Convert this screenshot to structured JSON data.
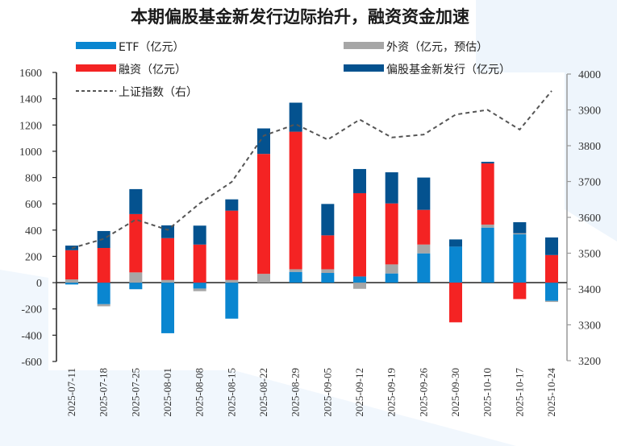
{
  "chart_data": {
    "type": "bar",
    "subtype": "stacked-bar-with-line",
    "title": "本期偏股基金新发行边际抬升，融资资金加速",
    "categories": [
      "2025-07-11",
      "2025-07-18",
      "2025-07-25",
      "2025-08-01",
      "2025-08-08",
      "2025-08-15",
      "2025-08-22",
      "2025-08-29",
      "2025-09-05",
      "2025-09-12",
      "2025-09-19",
      "2025-09-26",
      "2025-09-30",
      "2025-10-10",
      "2025-10-17",
      "2025-10-24"
    ],
    "series": [
      {
        "name": "ETF（亿元）",
        "type": "bar",
        "axis": "left",
        "color": "#0a86d0",
        "values": [
          -14,
          -164,
          -50,
          -385,
          -45,
          -274,
          0,
          82,
          74,
          47,
          70,
          223,
          274,
          419,
          368,
          -139
        ]
      },
      {
        "name": "外资（亿元，预估）",
        "type": "bar",
        "axis": "left",
        "color": "#a6a6a6",
        "values": [
          25,
          -16,
          78,
          20,
          -20,
          20,
          67,
          20,
          28,
          -47,
          69,
          67,
          0,
          23,
          8,
          -8
        ]
      },
      {
        "name": "融资（亿元）",
        "type": "bar",
        "axis": "left",
        "color": "#f42323",
        "values": [
          222,
          264,
          444,
          319,
          290,
          528,
          913,
          1047,
          258,
          634,
          464,
          264,
          -302,
          466,
          -125,
          210
        ]
      },
      {
        "name": "偏股基金新发行（亿元）",
        "type": "bar",
        "axis": "left",
        "color": "#04528f",
        "values": [
          35,
          129,
          190,
          97,
          144,
          86,
          194,
          221,
          239,
          184,
          237,
          246,
          55,
          12,
          84,
          134
        ]
      },
      {
        "name": "上证指数（右）",
        "type": "line",
        "axis": "right",
        "color": "#555555",
        "dashed": true,
        "values": [
          3514,
          3540,
          3594,
          3565,
          3639,
          3699,
          3828,
          3860,
          3817,
          3873,
          3823,
          3831,
          3887,
          3900,
          3845,
          3953
        ]
      }
    ],
    "left_axis": {
      "min": -600,
      "max": 1600,
      "ticks": [
        -600,
        -400,
        -200,
        0,
        200,
        400,
        600,
        800,
        1000,
        1200,
        1400,
        1600
      ]
    },
    "right_axis": {
      "min": 3200,
      "max": 4000,
      "ticks": [
        3200,
        3300,
        3400,
        3500,
        3600,
        3700,
        3800,
        3900,
        4000
      ]
    },
    "xlabel": "",
    "ylabel": "",
    "grid": false,
    "legend_position": "top"
  },
  "legend": [
    {
      "label": "ETF（亿元）",
      "swatch": "bar",
      "color": "#0a86d0"
    },
    {
      "label": "外资（亿元，预估）",
      "swatch": "bar",
      "color": "#a6a6a6"
    },
    {
      "label": "融资（亿元）",
      "swatch": "bar",
      "color": "#f42323"
    },
    {
      "label": "偏股基金新发行（亿元）",
      "swatch": "bar",
      "color": "#04528f"
    },
    {
      "label": "上证指数（右）",
      "swatch": "dashed-line",
      "color": "#555555"
    }
  ]
}
